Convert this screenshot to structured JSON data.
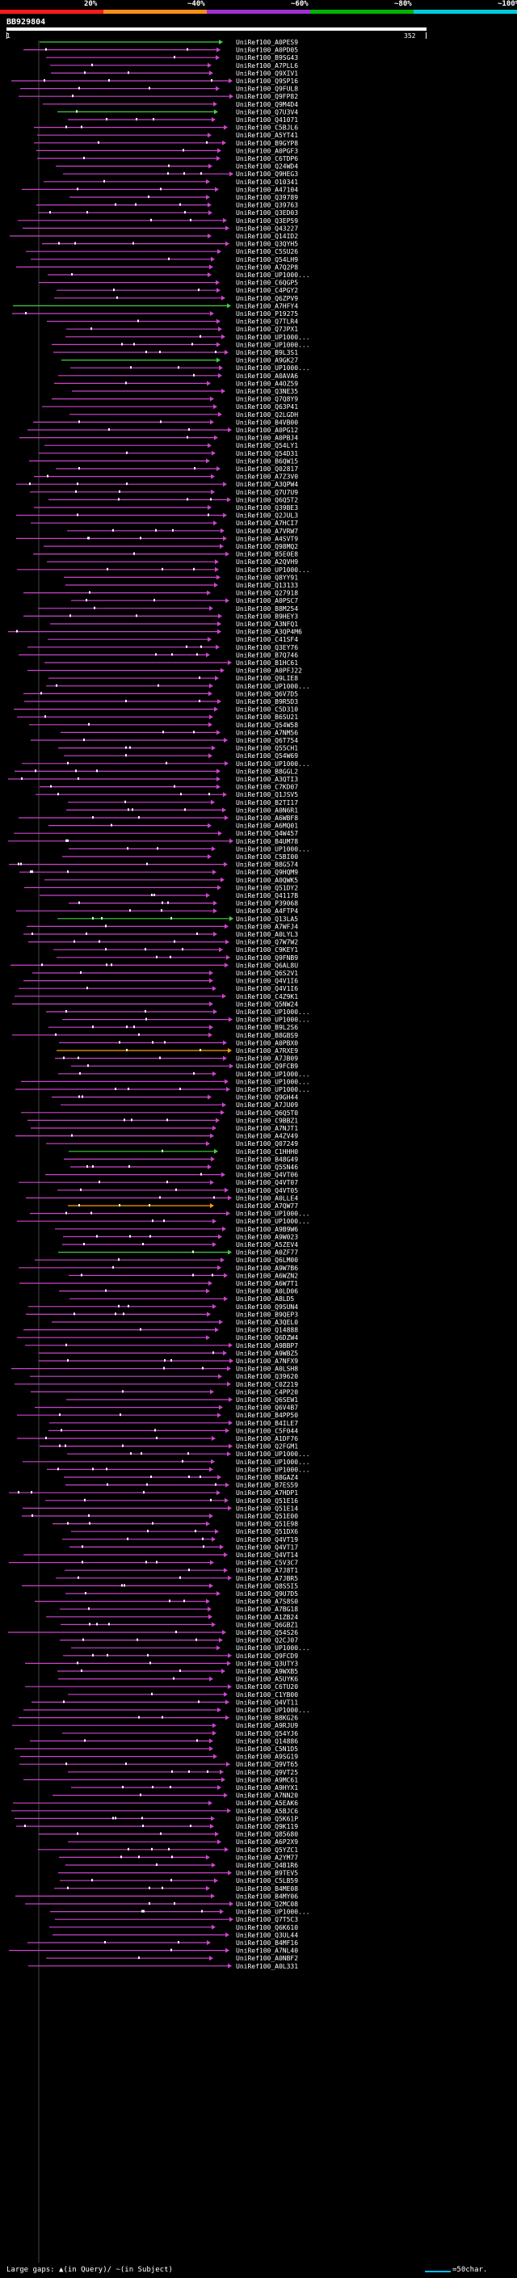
{
  "legend": {
    "items": [
      {
        "label": "20%",
        "color": "#ff1a1a"
      },
      {
        "label": "~40%",
        "color": "#ff8c1a"
      },
      {
        "label": "~60%",
        "color": "#a030d0"
      },
      {
        "label": "~80%",
        "color": "#00b300"
      },
      {
        "label": "~100%",
        "color": "#00ccdd"
      }
    ]
  },
  "query": {
    "title": "BB929804",
    "start": "1",
    "end": "352"
  },
  "footer": {
    "text": "Large gaps: ▲(in Query)/ ~(in Subject)",
    "scale": "=50char."
  },
  "colors": {
    "identity_60": "#cc44cc",
    "identity_80": "#44cc44",
    "identity_40": "#ff9900"
  },
  "hits": {
    "labels": [
      "UniRef100_A0PES9",
      "UniRef100_A0PD05",
      "UniRef100_B9SG43",
      "UniRef100_A7PLL6",
      "UniRef100_Q9XIV1",
      "UniRef100_Q9SP16",
      "UniRef100_Q9FUL8",
      "UniRef100_Q9FP82",
      "UniRef100_Q9M4D4",
      "UniRef100_Q7U3V4",
      "UniRef100_Q41071",
      "UniRef100_C5BJL6",
      "UniRef100_A5YT41",
      "UniRef100_B9GYP8",
      "UniRef100_A0PGF3",
      "UniRef100_C6TDP6",
      "UniRef100_Q24WD4",
      "UniRef100_Q9HEG3",
      "UniRef100_O10341",
      "UniRef100_A47104",
      "UniRef100_Q39789",
      "UniRef100_Q39763",
      "UniRef100_Q3ED03",
      "UniRef100_Q3EP59",
      "UniRef100_Q43227",
      "UniRef100_Q14ID2",
      "UniRef100_Q3QYH5",
      "UniRef100_C5SU26",
      "UniRef100_Q54LH9",
      "UniRef100_A7Q2P8",
      "UniRef100_UP1000...",
      "UniRef100_C6QGP5",
      "UniRef100_C4PGY2",
      "UniRef100_Q6ZPV9",
      "UniRef100_A7HFY4",
      "UniRef100_P19275",
      "UniRef100_Q7TLR4",
      "UniRef100_Q7JPX1",
      "UniRef100_UP1000...",
      "UniRef100_UP1000...",
      "UniRef100_B9L3S1",
      "UniRef100_A9GK27",
      "UniRef100_UP1000...",
      "UniRef100_A0AVA6",
      "UniRef100_A4OZ59",
      "UniRef100_Q3NE35",
      "UniRef100_Q7Q8Y9",
      "UniRef100_Q63P41",
      "UniRef100_Q2LGDH",
      "UniRef100_B4VB00",
      "UniRef100_A0PG12",
      "UniRef100_A0PBJ4",
      "UniRef100_Q54LY1",
      "UniRef100_Q54D31",
      "UniRef100_B6QW15",
      "UniRef100_Q02817",
      "UniRef100_A7Z3V0",
      "UniRef100_A3QPW4",
      "UniRef100_Q7U7U9",
      "UniRef100_Q6Q5T2",
      "UniRef100_Q39BE3",
      "UniRef100_Q2JUL3",
      "UniRef100_A7HCI7",
      "UniRef100_A7VRW7",
      "UniRef100_A4SVT9",
      "UniRef100_Q98MQ2",
      "UniRef100_B5E0E8",
      "UniRef100_A2QVH9",
      "UniRef100_UP1000...",
      "UniRef100_Q8YY91",
      "UniRef100_Q13133",
      "UniRef100_Q27918",
      "UniRef100_A0PSC7",
      "UniRef100_B8M254",
      "UniRef100_B9HEY3",
      "UniRef100_A3NFQ1",
      "UniRef100_A3QP4M6",
      "UniRef100_C41SF4",
      "UniRef100_Q3EY76",
      "UniRef100_B7Q746",
      "UniRef100_B1HC61",
      "UniRef100_A0PFJ22",
      "UniRef100_Q9LIE8",
      "UniRef100_UP1000...",
      "UniRef100_Q6V7D5",
      "UniRef100_B9R5D3",
      "UniRef100_C5D310",
      "UniRef100_B6SU21",
      "UniRef100_Q54W58",
      "UniRef100_A7NM56",
      "UniRef100_Q6T754",
      "UniRef100_Q55CH1",
      "UniRef100_Q54W69",
      "UniRef100_UP1000...",
      "UniRef100_B8GGL2",
      "UniRef100_A3QTI3",
      "UniRef100_C7KD07",
      "UniRef100_Q1JSV5",
      "UniRef100_B2TI17",
      "UniRef100_A0N6R1",
      "UniRef100_A6WBF8",
      "UniRef100_A6MQ01",
      "UniRef100_Q4W457",
      "UniRef100_B4UM78",
      "UniRef100_UP1000...",
      "UniRef100_C5BI00",
      "UniRef100_B8G574",
      "UniRef100_Q9HQM9",
      "UniRef100_A0QWK5",
      "UniRef100_Q51DY2",
      "UniRef100_Q4117B",
      "UniRef100_P39068",
      "UniRef100_A4FTP4",
      "UniRef100_Q13LA5",
      "UniRef100_A7WFJ4",
      "UniRef100_A0LYL3",
      "UniRef100_Q7W7W2",
      "UniRef100_C9KEY1",
      "UniRef100_Q9FNB9",
      "UniRef100_Q6AL8U",
      "UniRef100_Q6S2V1",
      "UniRef100_Q4V1I6",
      "UniRef100_Q4V1I6",
      "UniRef100_C4Z9K1",
      "UniRef100_Q5NW24",
      "UniRef100_UP1000...",
      "UniRef100_UP1000...",
      "UniRef100_B9L2S6",
      "UniRef100_B8GBS9",
      "UniRef100_A0PBX0",
      "UniRef100_A7RXE9",
      "UniRef100_A7JB09",
      "UniRef100_Q9FCB9",
      "UniRef100_UP1000...",
      "UniRef100_UP1000...",
      "UniRef100_UP1000...",
      "UniRef100_Q9GH44",
      "UniRef100_A7JU09",
      "UniRef100_Q6Q5T0",
      "UniRef100_C9BBZ1",
      "UniRef100_A7NJT1",
      "UniRef100_A4ZV49",
      "UniRef100_Q07249",
      "UniRef100_C1HHH0",
      "UniRef100_B48G49",
      "UniRef100_Q5SN46",
      "UniRef100_Q4VT06",
      "UniRef100_Q4VT07",
      "UniRef100_Q4VT05",
      "UniRef100_A0LLE4",
      "UniRef100_A7QW77",
      "UniRef100_UP1000...",
      "UniRef100_UP1000...",
      "UniRef100_A9B9W6",
      "UniRef100_A9W023",
      "UniRef100_A5ZEV4",
      "UniRef100_A0ZF77",
      "UniRef100_Q6LM00",
      "UniRef100_A9W7B6",
      "UniRef100_A6WZN2",
      "UniRef100_A6W7T1",
      "UniRef100_A0LD06",
      "UniRef100_A8LD5",
      "UniRef100_Q9SUN4",
      "UniRef100_B9QEP3",
      "UniRef100_A3QEL0",
      "UniRef100_Q14888",
      "UniRef100_Q6DZW4",
      "UniRef100_A9BBP7",
      "UniRef100_A9WBZ5",
      "UniRef100_A7NFX9",
      "UniRef100_A0LSH8",
      "UniRef100_Q39620",
      "UniRef100_C0Z219",
      "UniRef100_C4PP20",
      "UniRef100_Q6SEW1",
      "UniRef100_Q6V4B7",
      "UniRef100_B4PP50",
      "UniRef100_B4ILE7",
      "UniRef100_C5F044",
      "UniRef100_A1DF76",
      "UniRef100_Q2FGM1",
      "UniRef100_UP1000...",
      "UniRef100_UP1000...",
      "UniRef100_UP1000...",
      "UniRef100_B8GAZ4",
      "UniRef100_B7ES59",
      "UniRef100_A7HDP1",
      "UniRef100_Q51E16",
      "UniRef100_Q51E14",
      "UniRef100_Q51E00",
      "UniRef100_Q51E98",
      "UniRef100_Q51DX6",
      "UniRef100_Q4VT19",
      "UniRef100_Q4VT17",
      "UniRef100_Q4VT14",
      "UniRef100_C5V3C7",
      "UniRef100_A7J8T1",
      "UniRef100_A7JBR5",
      "UniRef100_Q8S5I5",
      "UniRef100_Q9U7D5",
      "UniRef100_A7S8S0",
      "UniRef100_A7BG18",
      "UniRef100_A1ZB24",
      "UniRef100_Q6GBZ1",
      "UniRef100_Q54S26",
      "UniRef100_Q2CJ07",
      "UniRef100_UP1000...",
      "UniRef100_Q9FCD9",
      "UniRef100_Q3UTY3",
      "UniRef100_A9WXB5",
      "UniRef100_A5UYK6",
      "UniRef100_C6TU20",
      "UniRef100_C1YB00",
      "UniRef100_Q4VT11",
      "UniRef100_UP1000...",
      "UniRef100_B8KG26",
      "UniRef100_A9RJU9",
      "UniRef100_Q54YJ6",
      "UniRef100_Q14886",
      "UniRef100_C5N1D5",
      "UniRef100_A9SG19",
      "UniRef100_Q9VT65",
      "UniRef100_Q9VT25",
      "UniRef100_A9MC61",
      "UniRef100_A9HYX1",
      "UniRef100_A7NN20",
      "UniRef100_A5EAK6",
      "UniRef100_A5BJC6",
      "UniRef100_Q5K61P",
      "UniRef100_Q9K119",
      "UniRef100_Q85680",
      "UniRef100_A6P2X9",
      "UniRef100_Q5YZC1",
      "UniRef100_A2YM77",
      "UniRef100_Q4B1R6",
      "UniRef100_B9TEV5",
      "UniRef100_C5LB59",
      "UniRef100_B4ME08",
      "UniRef100_B4MY06",
      "UniRef100_Q2MC08",
      "UniRef100_UP1000...",
      "UniRef100_Q7T5C3",
      "UniRef100_Q6K610",
      "UniRef100_Q3UL44",
      "UniRef100_B4MF16",
      "UniRef100_A7NL40",
      "UniRef100_A0NBF2",
      "UniRef100_A0L331"
    ]
  }
}
